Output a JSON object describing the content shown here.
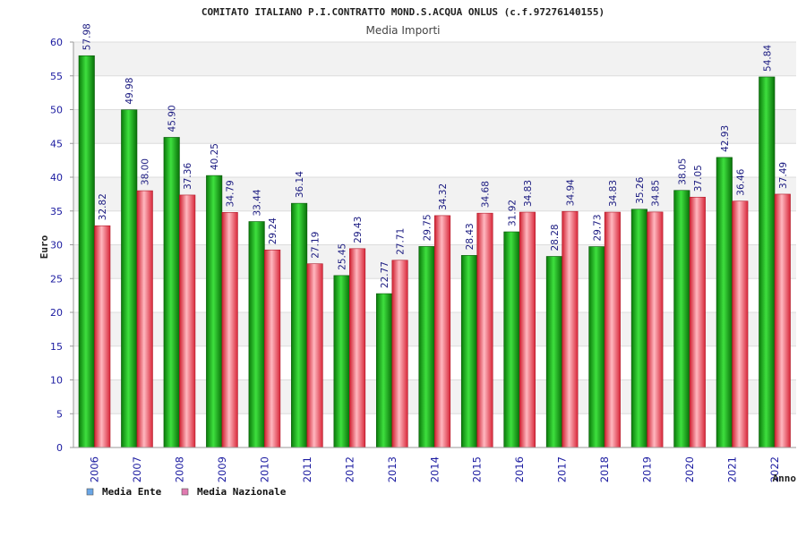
{
  "chart_data": {
    "type": "bar",
    "title": "COMITATO ITALIANO P.I.CONTRATTO MOND.S.ACQUA ONLUS (c.f.97276140155)",
    "subtitle": "Media Importi",
    "xlabel": "Anno",
    "ylabel": "Euro",
    "ylim": [
      0,
      60
    ],
    "yticks": [
      0,
      5,
      10,
      15,
      20,
      25,
      30,
      35,
      40,
      45,
      50,
      55,
      60
    ],
    "grid": true,
    "legend_position": "bottom-left",
    "categories": [
      "2006",
      "2007",
      "2008",
      "2009",
      "2010",
      "2011",
      "2012",
      "2013",
      "2014",
      "2015",
      "2016",
      "2017",
      "2018",
      "2019",
      "2020",
      "2021",
      "2022"
    ],
    "series": [
      {
        "name": "Media Ente",
        "color": "#10b010",
        "legend_color": "#6aa6e6",
        "values": [
          57.98,
          49.98,
          45.9,
          40.25,
          33.44,
          36.14,
          25.45,
          22.77,
          29.75,
          28.43,
          31.92,
          28.28,
          29.73,
          35.26,
          38.05,
          42.93,
          54.84
        ],
        "labels": [
          "57.98",
          "49.98",
          "45.90",
          "40.25",
          "33.44",
          "36.14",
          "25.45",
          "22.77",
          "29.75",
          "28.43",
          "31.92",
          "28.28",
          "29.73",
          "35.26",
          "38.05",
          "42.93",
          "54.84"
        ]
      },
      {
        "name": "Media Nazionale",
        "color": "#e8303c",
        "legend_color": "#e07ab0",
        "values": [
          32.82,
          38.0,
          37.36,
          34.79,
          29.24,
          27.19,
          29.43,
          27.71,
          34.32,
          34.68,
          34.83,
          34.94,
          34.83,
          34.85,
          37.05,
          36.46,
          37.49
        ],
        "labels": [
          "32.82",
          "38.00",
          "37.36",
          "34.79",
          "29.24",
          "27.19",
          "29.43",
          "27.71",
          "34.32",
          "34.68",
          "34.83",
          "34.94",
          "34.83",
          "34.85",
          "37.05",
          "36.46",
          "37.49"
        ]
      }
    ]
  }
}
